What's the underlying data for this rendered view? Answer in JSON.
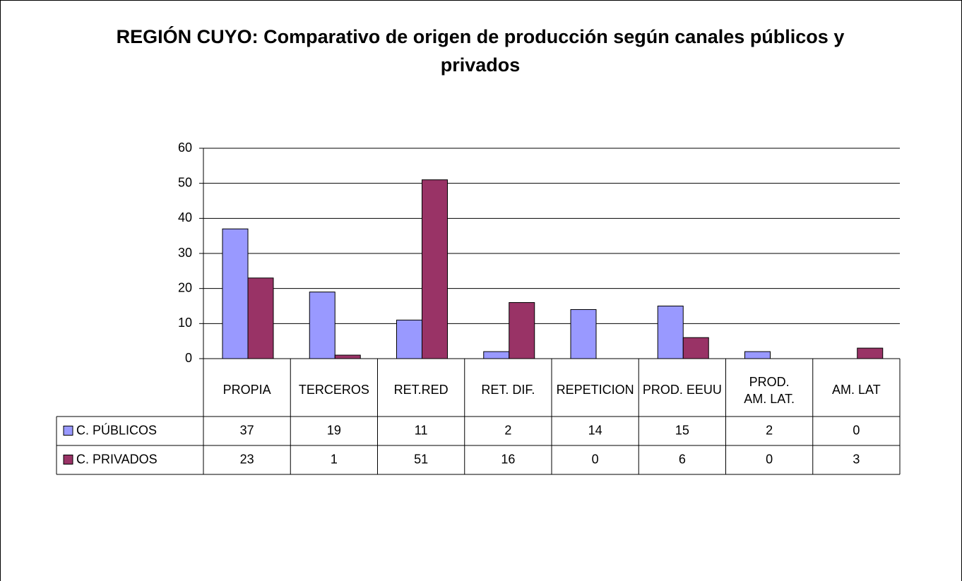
{
  "chart_data": {
    "type": "bar",
    "title": "REGIÓN CUYO: Comparativo de origen de producción según canales públicos y privados",
    "categories": [
      "PROPIA",
      "TERCEROS",
      "RET.RED",
      "RET. DIF.",
      "REPETICION",
      "PROD. EEUU",
      "PROD. AM. LAT.",
      "AM. LAT"
    ],
    "series": [
      {
        "name": "C. PÚBLICOS",
        "color": "#9999ff",
        "values": [
          37,
          19,
          11,
          2,
          14,
          15,
          2,
          0
        ]
      },
      {
        "name": "C. PRIVADOS",
        "color": "#993366",
        "values": [
          23,
          1,
          51,
          16,
          0,
          6,
          0,
          3
        ]
      }
    ],
    "ylim": [
      0,
      60
    ],
    "yticks": [
      0,
      10,
      20,
      30,
      40,
      50,
      60
    ],
    "grid": true,
    "data_table": true
  }
}
